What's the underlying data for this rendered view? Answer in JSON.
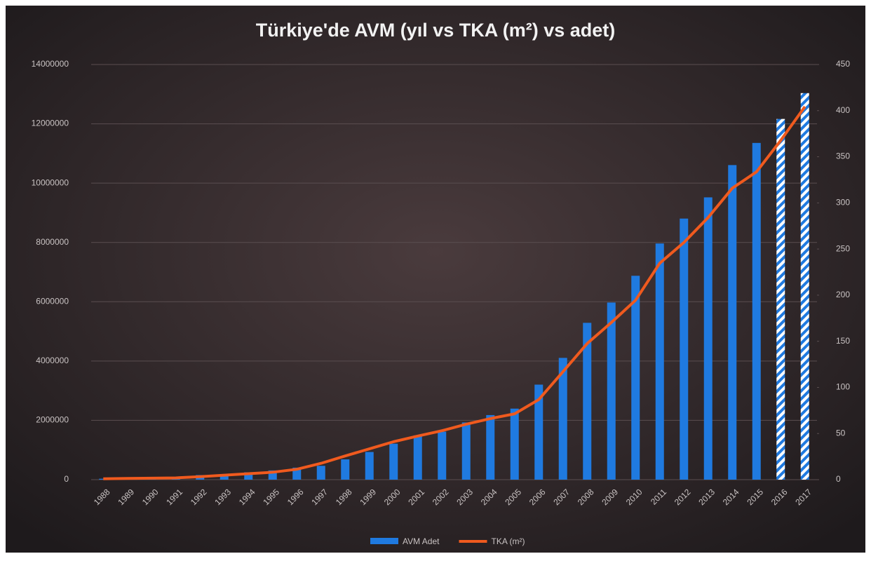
{
  "chart_data": {
    "type": "bar_line",
    "title": "Türkiye'de AVM (yıl vs TKA (m²) vs adet)",
    "categories": [
      "1988",
      "1989",
      "1990",
      "1991",
      "1992",
      "1993",
      "1994",
      "1995",
      "1996",
      "1997",
      "1998",
      "1999",
      "2000",
      "2001",
      "2002",
      "2003",
      "2004",
      "2005",
      "2006",
      "2007",
      "2008",
      "2009",
      "2010",
      "2011",
      "2012",
      "2013",
      "2014",
      "2015",
      "2016",
      "2017"
    ],
    "series": [
      {
        "name": "AVM Adet",
        "type": "bar",
        "axis": "y2",
        "color": "#1f7ae0",
        "hatched_indices": [
          28,
          29
        ],
        "values": [
          1,
          1,
          2,
          3,
          5,
          6,
          8,
          10,
          13,
          15,
          22,
          30,
          39,
          48,
          52,
          62,
          70,
          77,
          103,
          132,
          170,
          192,
          221,
          256,
          283,
          306,
          341,
          365,
          391,
          419
        ]
      },
      {
        "name": "TKA (m²)",
        "type": "line",
        "axis": "y",
        "color": "#f05a1e",
        "values": [
          30000,
          40000,
          50000,
          60000,
          100000,
          150000,
          200000,
          250000,
          350000,
          550000,
          800000,
          1040000,
          1280000,
          1470000,
          1650000,
          1870000,
          2060000,
          2220000,
          2700000,
          3640000,
          4590000,
          5300000,
          6050000,
          7300000,
          8000000,
          8840000,
          9830000,
          10380000,
          11440000,
          12580000
        ]
      }
    ],
    "ylim": [
      0,
      14000000
    ],
    "yticks": [
      0,
      2000000,
      4000000,
      6000000,
      8000000,
      10000000,
      12000000,
      14000000
    ],
    "y2lim": [
      0,
      450
    ],
    "y2ticks": [
      0,
      50,
      100,
      150,
      200,
      250,
      300,
      350,
      400,
      450
    ],
    "grid": true,
    "legend": "bottom"
  }
}
